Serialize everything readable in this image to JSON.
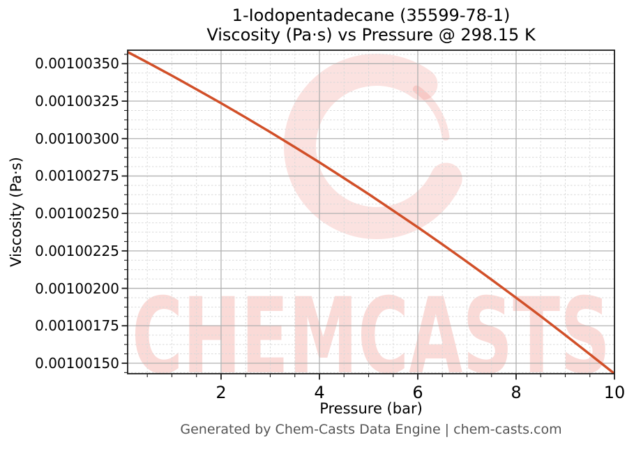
{
  "figure": {
    "title_line1": "1-Iodopentadecane (35599-78-1)",
    "title_line2": "Viscosity (Pa·s) vs Pressure @ 298.15 K",
    "footer": "Generated by Chem-Casts Data Engine | chem-casts.com"
  },
  "watermark": {
    "text": "CHEMCASTS",
    "color": "#e74c3c",
    "text_opacity": 0.2,
    "logo_opacity": 0.16
  },
  "colors": {
    "curve": "#d14f28",
    "grid_major": "#b0b0b0",
    "grid_minor": "#d9d9d9",
    "spine": "#1c1c1c",
    "tick_text": "#000000",
    "footer_text": "#555555"
  },
  "chart_data": {
    "type": "line",
    "title": "1-Iodopentadecane (35599-78-1) — Viscosity (Pa·s) vs Pressure @ 298.15 K",
    "xlabel": "Pressure (bar)",
    "ylabel": "Viscosity (Pa·s)",
    "xlim": [
      0.1,
      10
    ],
    "ylim": [
      0.00100143,
      0.00100359
    ],
    "x_ticks": [
      2,
      4,
      6,
      8,
      10
    ],
    "x_tick_labels": [
      "2",
      "4",
      "6",
      "8",
      "10"
    ],
    "y_ticks": [
      0.0010015,
      0.00100175,
      0.001002,
      0.00100225,
      0.0010025,
      0.00100275,
      0.001003,
      0.00100325,
      0.0010035
    ],
    "y_tick_labels": [
      "0.00100150",
      "0.00100175",
      "0.00100200",
      "0.00100225",
      "0.00100250",
      "0.00100275",
      "0.00100300",
      "0.00100325",
      "0.00100350"
    ],
    "x_minor_step": 0.5,
    "y_minor_step": 6.25e-08,
    "grid": true,
    "legend_position": "none",
    "series": [
      {
        "name": "Viscosity vs Pressure @ 298.15 K",
        "color": "#d14f28",
        "x": [
          0.1,
          0.5,
          1,
          1.5,
          2,
          2.5,
          3,
          3.5,
          4,
          4.5,
          5,
          5.5,
          6,
          6.5,
          7,
          7.5,
          8,
          8.5,
          9,
          9.5,
          10
        ],
        "y": [
          0.001003578,
          0.001003509,
          0.00100342,
          0.001003329,
          0.001003236,
          0.001003141,
          0.001003043,
          0.001002943,
          0.001002841,
          0.001002736,
          0.001002629,
          0.001002519,
          0.001002408,
          0.001002294,
          0.001002177,
          0.001002058,
          0.001001937,
          0.001001814,
          0.001001688,
          0.00100156,
          0.00100143
        ]
      }
    ]
  }
}
